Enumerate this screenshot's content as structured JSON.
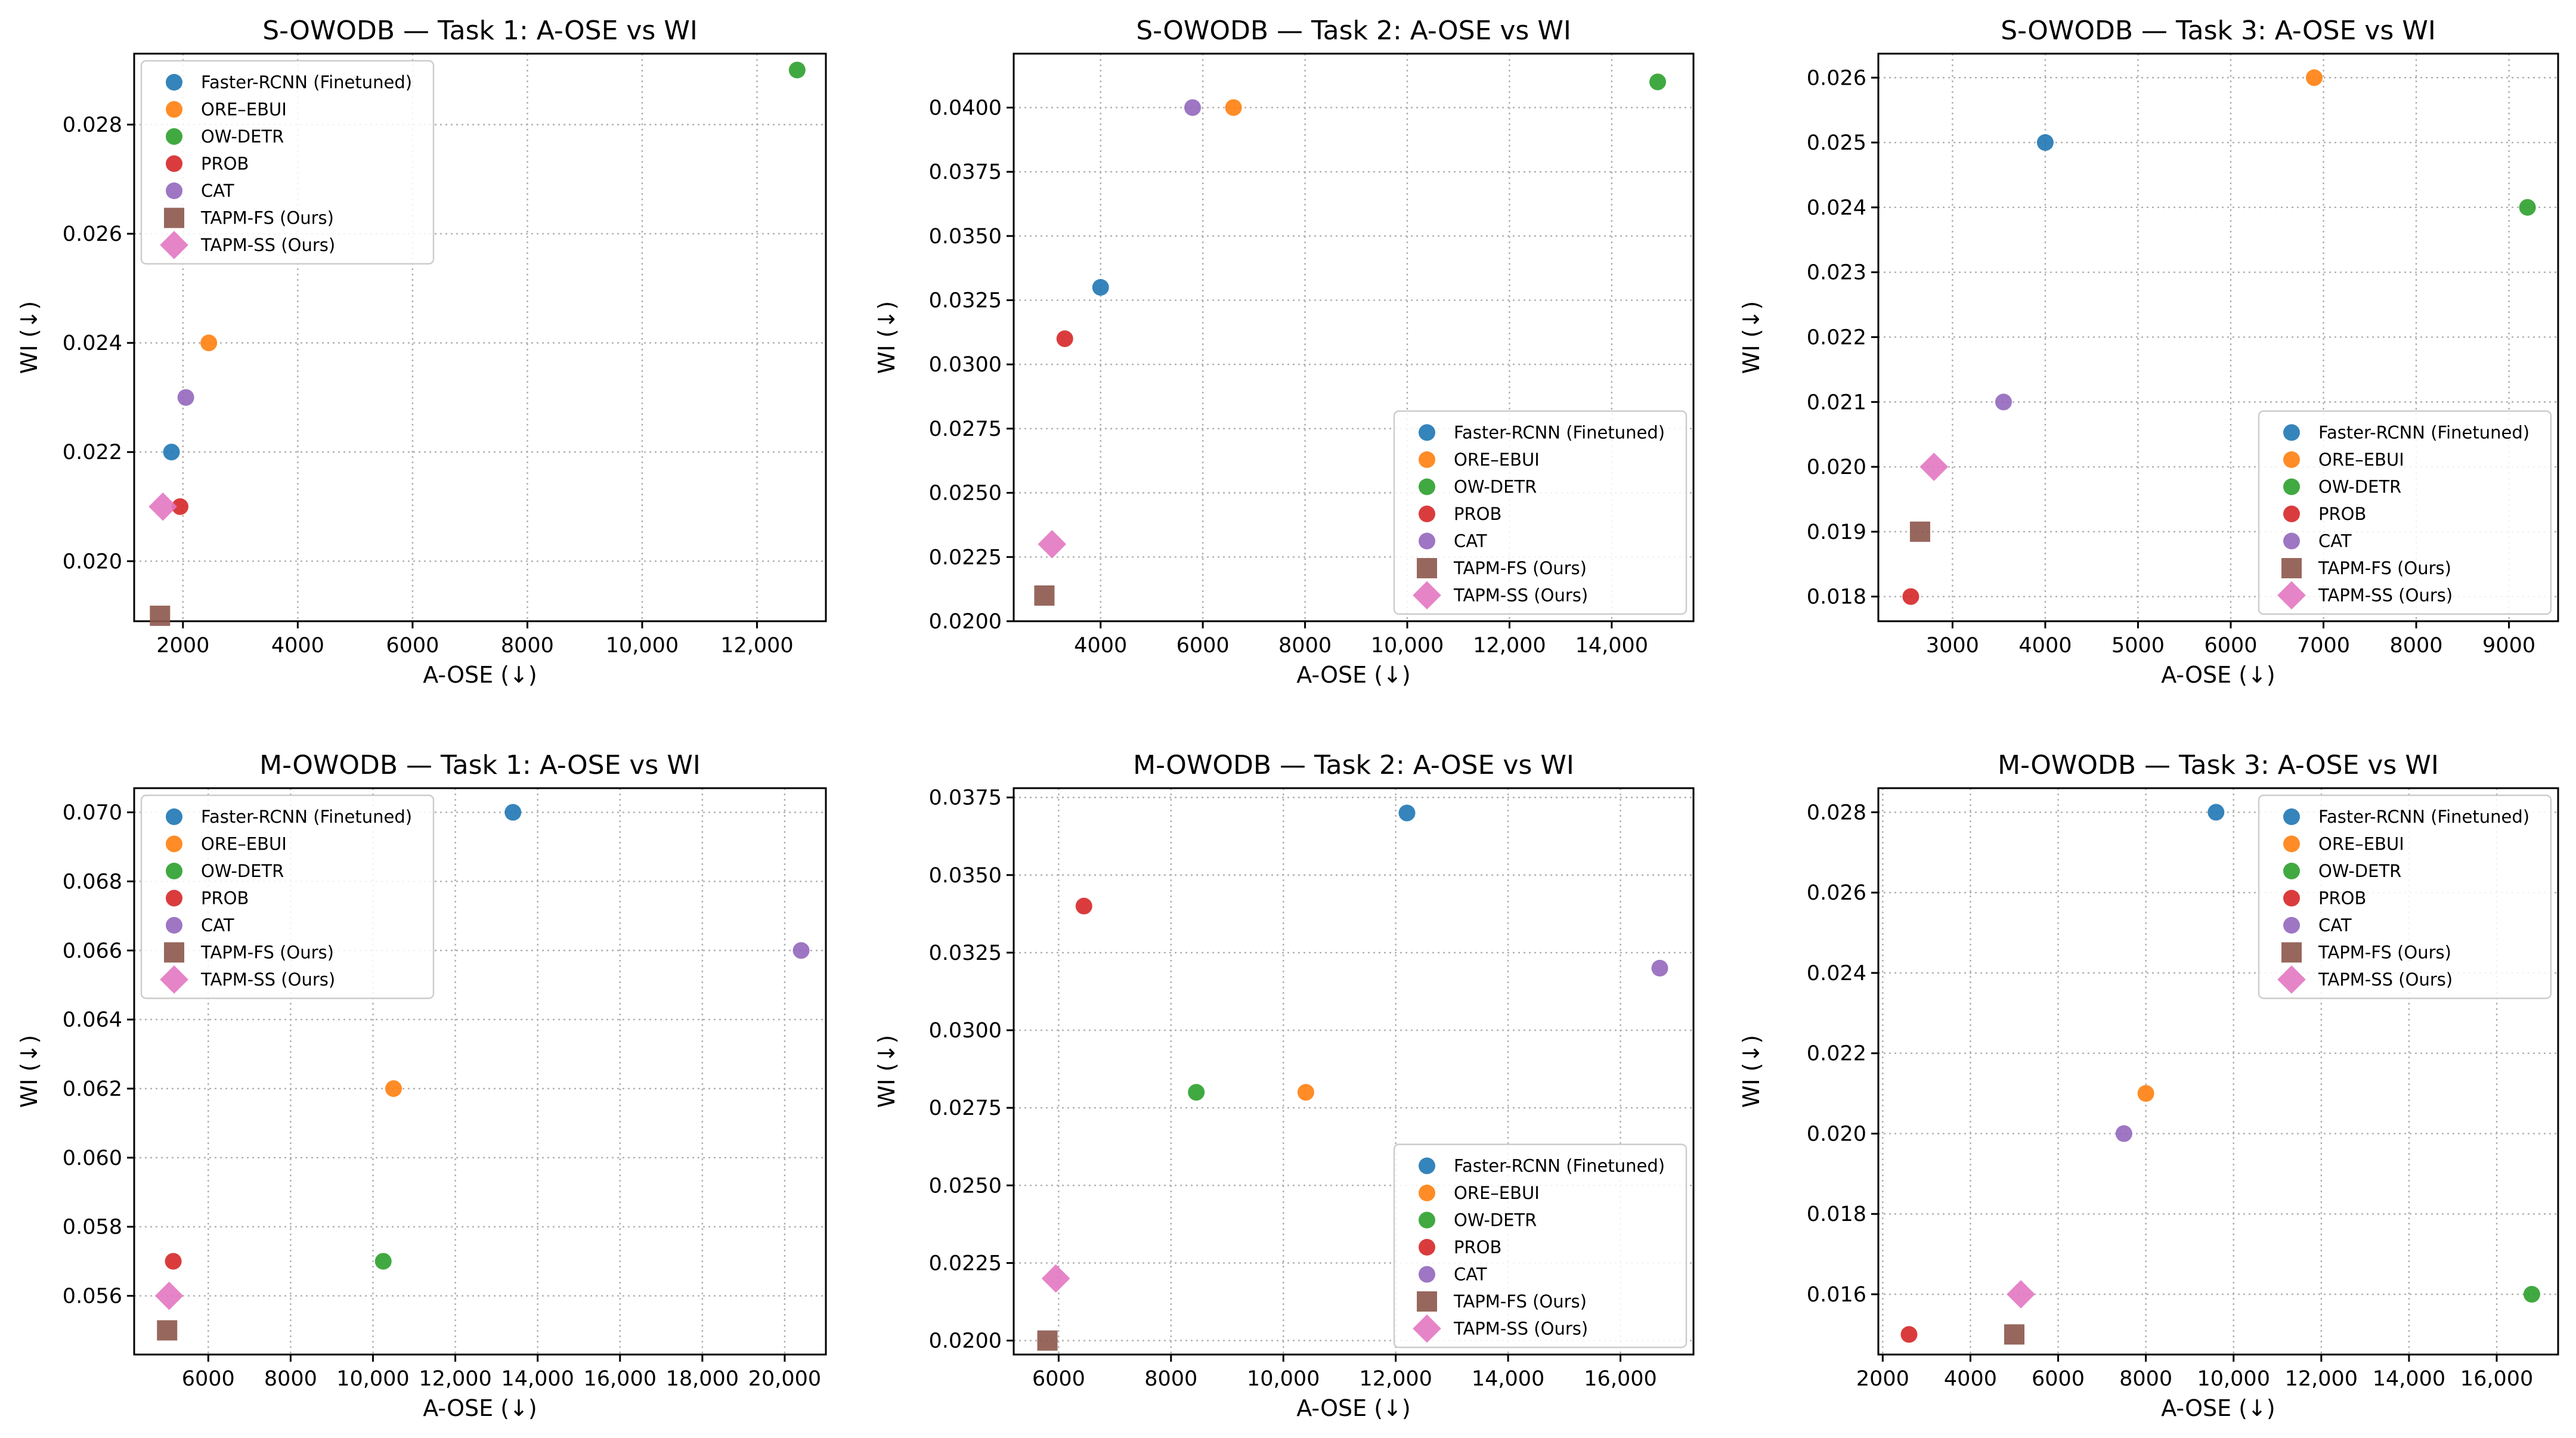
{
  "figure_title": "",
  "chart_data": [
    {
      "type": "scatter",
      "title": "S-OWODB — Task 1: A-OSE vs WI",
      "xlabel": "A-OSE (↓)",
      "ylabel": "WI (↓)",
      "xlim": [
        1150,
        13200
      ],
      "ylim": [
        0.0189,
        0.0293
      ],
      "xticks": [
        2000,
        4000,
        6000,
        8000,
        10000,
        12000
      ],
      "xtick_labels": [
        "2000",
        "4000",
        "6000",
        "8000",
        "10,000",
        "12,000"
      ],
      "yticks": [
        0.02,
        0.022,
        0.024,
        0.026,
        0.028
      ],
      "ytick_labels": [
        "0.020",
        "0.022",
        "0.024",
        "0.026",
        "0.028"
      ],
      "legend_position": "top-left",
      "series": [
        {
          "name": "Faster-RCNN (Finetuned)",
          "color": "#1f77b4",
          "marker": "circle",
          "x": [
            1800
          ],
          "y": [
            0.022
          ]
        },
        {
          "name": "ORE–EBUI",
          "color": "#ff7f0e",
          "marker": "circle",
          "x": [
            2450
          ],
          "y": [
            0.024
          ]
        },
        {
          "name": "OW-DETR",
          "color": "#2ca02c",
          "marker": "circle",
          "x": [
            12700
          ],
          "y": [
            0.029
          ]
        },
        {
          "name": "PROB",
          "color": "#d62728",
          "marker": "circle",
          "x": [
            1950
          ],
          "y": [
            0.021
          ]
        },
        {
          "name": "CAT",
          "color": "#9467bd",
          "marker": "circle",
          "x": [
            2050
          ],
          "y": [
            0.023
          ]
        },
        {
          "name": "TAPM-FS (Ours)",
          "color": "#8c564b",
          "marker": "square",
          "x": [
            1600
          ],
          "y": [
            0.019
          ]
        },
        {
          "name": "TAPM-SS (Ours)",
          "color": "#e377c2",
          "marker": "diamond",
          "x": [
            1650
          ],
          "y": [
            0.021
          ]
        }
      ]
    },
    {
      "type": "scatter",
      "title": "S-OWODB — Task 2: A-OSE vs WI",
      "xlabel": "A-OSE (↓)",
      "ylabel": "WI (↓)",
      "xlim": [
        2300,
        15600
      ],
      "ylim": [
        0.02,
        0.0421
      ],
      "xticks": [
        4000,
        6000,
        8000,
        10000,
        12000,
        14000
      ],
      "xtick_labels": [
        "4000",
        "6000",
        "8000",
        "10,000",
        "12,000",
        "14,000"
      ],
      "yticks": [
        0.02,
        0.0225,
        0.025,
        0.0275,
        0.03,
        0.0325,
        0.035,
        0.0375,
        0.04
      ],
      "ytick_labels": [
        "0.0200",
        "0.0225",
        "0.0250",
        "0.0275",
        "0.0300",
        "0.0325",
        "0.0350",
        "0.0375",
        "0.0400"
      ],
      "legend_position": "bottom-right",
      "series": [
        {
          "name": "Faster-RCNN (Finetuned)",
          "color": "#1f77b4",
          "marker": "circle",
          "x": [
            4000
          ],
          "y": [
            0.033
          ]
        },
        {
          "name": "ORE–EBUI",
          "color": "#ff7f0e",
          "marker": "circle",
          "x": [
            6600
          ],
          "y": [
            0.04
          ]
        },
        {
          "name": "OW-DETR",
          "color": "#2ca02c",
          "marker": "circle",
          "x": [
            14900
          ],
          "y": [
            0.041
          ]
        },
        {
          "name": "PROB",
          "color": "#d62728",
          "marker": "circle",
          "x": [
            3300
          ],
          "y": [
            0.031
          ]
        },
        {
          "name": "CAT",
          "color": "#9467bd",
          "marker": "circle",
          "x": [
            5800
          ],
          "y": [
            0.04
          ]
        },
        {
          "name": "TAPM-FS (Ours)",
          "color": "#8c564b",
          "marker": "square",
          "x": [
            2900
          ],
          "y": [
            0.021
          ]
        },
        {
          "name": "TAPM-SS (Ours)",
          "color": "#e377c2",
          "marker": "diamond",
          "x": [
            3050
          ],
          "y": [
            0.023
          ]
        }
      ]
    },
    {
      "type": "scatter",
      "title": "S-OWODB — Task 3: A-OSE vs WI",
      "xlabel": "A-OSE (↓)",
      "ylabel": "WI (↓)",
      "xlim": [
        2200,
        9530
      ],
      "ylim": [
        0.01762,
        0.02637
      ],
      "xticks": [
        3000,
        4000,
        5000,
        6000,
        7000,
        8000,
        9000
      ],
      "xtick_labels": [
        "3000",
        "4000",
        "5000",
        "6000",
        "7000",
        "8000",
        "9000"
      ],
      "yticks": [
        0.018,
        0.019,
        0.02,
        0.021,
        0.022,
        0.023,
        0.024,
        0.025,
        0.026
      ],
      "ytick_labels": [
        "0.018",
        "0.019",
        "0.020",
        "0.021",
        "0.022",
        "0.023",
        "0.024",
        "0.025",
        "0.026"
      ],
      "legend_position": "bottom-right",
      "series": [
        {
          "name": "Faster-RCNN (Finetuned)",
          "color": "#1f77b4",
          "marker": "circle",
          "x": [
            4000
          ],
          "y": [
            0.025
          ]
        },
        {
          "name": "ORE–EBUI",
          "color": "#ff7f0e",
          "marker": "circle",
          "x": [
            6900
          ],
          "y": [
            0.026
          ]
        },
        {
          "name": "OW-DETR",
          "color": "#2ca02c",
          "marker": "circle",
          "x": [
            9200
          ],
          "y": [
            0.024
          ]
        },
        {
          "name": "PROB",
          "color": "#d62728",
          "marker": "circle",
          "x": [
            2550
          ],
          "y": [
            0.018
          ]
        },
        {
          "name": "CAT",
          "color": "#9467bd",
          "marker": "circle",
          "x": [
            3550
          ],
          "y": [
            0.021
          ]
        },
        {
          "name": "TAPM-FS (Ours)",
          "color": "#8c564b",
          "marker": "square",
          "x": [
            2650
          ],
          "y": [
            0.019
          ]
        },
        {
          "name": "TAPM-SS (Ours)",
          "color": "#e377c2",
          "marker": "diamond",
          "x": [
            2800
          ],
          "y": [
            0.02
          ]
        }
      ]
    },
    {
      "type": "scatter",
      "title": "M-OWODB — Task 1: A-OSE vs WI",
      "xlabel": "A-OSE (↓)",
      "ylabel": "WI (↓)",
      "xlim": [
        4200,
        21000
      ],
      "ylim": [
        0.0543,
        0.0707
      ],
      "xticks": [
        6000,
        8000,
        10000,
        12000,
        14000,
        16000,
        18000,
        20000
      ],
      "xtick_labels": [
        "6000",
        "8000",
        "10,000",
        "12,000",
        "14,000",
        "16,000",
        "18,000",
        "20,000"
      ],
      "yticks": [
        0.056,
        0.058,
        0.06,
        0.062,
        0.064,
        0.066,
        0.068,
        0.07
      ],
      "ytick_labels": [
        "0.056",
        "0.058",
        "0.060",
        "0.062",
        "0.064",
        "0.066",
        "0.068",
        "0.070"
      ],
      "legend_position": "top-left",
      "series": [
        {
          "name": "Faster-RCNN (Finetuned)",
          "color": "#1f77b4",
          "marker": "circle",
          "x": [
            13400
          ],
          "y": [
            0.07
          ]
        },
        {
          "name": "ORE–EBUI",
          "color": "#ff7f0e",
          "marker": "circle",
          "x": [
            10500
          ],
          "y": [
            0.062
          ]
        },
        {
          "name": "OW-DETR",
          "color": "#2ca02c",
          "marker": "circle",
          "x": [
            10250
          ],
          "y": [
            0.057
          ]
        },
        {
          "name": "PROB",
          "color": "#d62728",
          "marker": "circle",
          "x": [
            5150
          ],
          "y": [
            0.057
          ]
        },
        {
          "name": "CAT",
          "color": "#9467bd",
          "marker": "circle",
          "x": [
            20400
          ],
          "y": [
            0.066
          ]
        },
        {
          "name": "TAPM-FS (Ours)",
          "color": "#8c564b",
          "marker": "square",
          "x": [
            5000
          ],
          "y": [
            0.055
          ]
        },
        {
          "name": "TAPM-SS (Ours)",
          "color": "#e377c2",
          "marker": "diamond",
          "x": [
            5050
          ],
          "y": [
            0.056
          ]
        }
      ]
    },
    {
      "type": "scatter",
      "title": "M-OWODB — Task 2: A-OSE vs WI",
      "xlabel": "A-OSE (↓)",
      "ylabel": "WI (↓)",
      "xlim": [
        5200,
        17300
      ],
      "ylim": [
        0.01955,
        0.0378
      ],
      "xticks": [
        6000,
        8000,
        10000,
        12000,
        14000,
        16000
      ],
      "xtick_labels": [
        "6000",
        "8000",
        "10,000",
        "12,000",
        "14,000",
        "16,000"
      ],
      "yticks": [
        0.02,
        0.0225,
        0.025,
        0.0275,
        0.03,
        0.0325,
        0.035,
        0.0375
      ],
      "ytick_labels": [
        "0.0200",
        "0.0225",
        "0.0250",
        "0.0275",
        "0.0300",
        "0.0325",
        "0.0350",
        "0.0375"
      ],
      "legend_position": "bottom-right",
      "series": [
        {
          "name": "Faster-RCNN (Finetuned)",
          "color": "#1f77b4",
          "marker": "circle",
          "x": [
            12200
          ],
          "y": [
            0.037
          ]
        },
        {
          "name": "ORE–EBUI",
          "color": "#ff7f0e",
          "marker": "circle",
          "x": [
            10400
          ],
          "y": [
            0.028
          ]
        },
        {
          "name": "OW-DETR",
          "color": "#2ca02c",
          "marker": "circle",
          "x": [
            8450
          ],
          "y": [
            0.028
          ]
        },
        {
          "name": "PROB",
          "color": "#d62728",
          "marker": "circle",
          "x": [
            6450
          ],
          "y": [
            0.034
          ]
        },
        {
          "name": "CAT",
          "color": "#9467bd",
          "marker": "circle",
          "x": [
            16700
          ],
          "y": [
            0.032
          ]
        },
        {
          "name": "TAPM-FS (Ours)",
          "color": "#8c564b",
          "marker": "square",
          "x": [
            5800
          ],
          "y": [
            0.02
          ]
        },
        {
          "name": "TAPM-SS (Ours)",
          "color": "#e377c2",
          "marker": "diamond",
          "x": [
            5950
          ],
          "y": [
            0.022
          ]
        }
      ]
    },
    {
      "type": "scatter",
      "title": "M-OWODB — Task 3: A-OSE vs WI",
      "xlabel": "A-OSE (↓)",
      "ylabel": "WI (↓)",
      "xlim": [
        1900,
        17400
      ],
      "ylim": [
        0.0145,
        0.0286
      ],
      "xticks": [
        2000,
        4000,
        6000,
        8000,
        10000,
        12000,
        14000,
        16000
      ],
      "xtick_labels": [
        "2000",
        "4000",
        "6000",
        "8000",
        "10,000",
        "12,000",
        "14,000",
        "16,000"
      ],
      "yticks": [
        0.016,
        0.018,
        0.02,
        0.022,
        0.024,
        0.026,
        0.028
      ],
      "ytick_labels": [
        "0.016",
        "0.018",
        "0.020",
        "0.022",
        "0.024",
        "0.026",
        "0.028"
      ],
      "legend_position": "top-right",
      "series": [
        {
          "name": "Faster-RCNN (Finetuned)",
          "color": "#1f77b4",
          "marker": "circle",
          "x": [
            9600
          ],
          "y": [
            0.028
          ]
        },
        {
          "name": "ORE–EBUI",
          "color": "#ff7f0e",
          "marker": "circle",
          "x": [
            8000
          ],
          "y": [
            0.021
          ]
        },
        {
          "name": "OW-DETR",
          "color": "#2ca02c",
          "marker": "circle",
          "x": [
            16800
          ],
          "y": [
            0.016
          ]
        },
        {
          "name": "PROB",
          "color": "#d62728",
          "marker": "circle",
          "x": [
            2600
          ],
          "y": [
            0.015
          ]
        },
        {
          "name": "CAT",
          "color": "#9467bd",
          "marker": "circle",
          "x": [
            7500
          ],
          "y": [
            0.02
          ]
        },
        {
          "name": "TAPM-FS (Ours)",
          "color": "#8c564b",
          "marker": "square",
          "x": [
            5000
          ],
          "y": [
            0.015
          ]
        },
        {
          "name": "TAPM-SS (Ours)",
          "color": "#e377c2",
          "marker": "diamond",
          "x": [
            5150
          ],
          "y": [
            0.016
          ]
        }
      ]
    }
  ]
}
